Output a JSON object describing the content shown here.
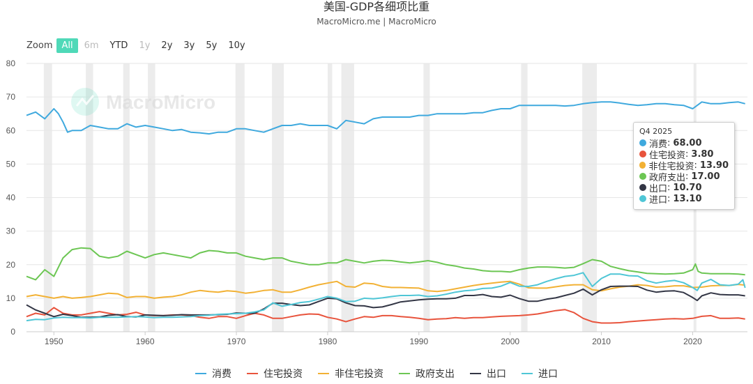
{
  "title": "美国-GDP各细项比重",
  "subtitle": "MacroMicro.me | MacroMicro",
  "watermark": "MacroMicro",
  "zoom": {
    "label": "Zoom",
    "buttons": [
      {
        "label": "All",
        "state": "active"
      },
      {
        "label": "6m",
        "state": "disabled"
      },
      {
        "label": "YTD",
        "state": "normal"
      },
      {
        "label": "1y",
        "state": "disabled"
      },
      {
        "label": "2y",
        "state": "normal"
      },
      {
        "label": "3y",
        "state": "normal"
      },
      {
        "label": "5y",
        "state": "normal"
      },
      {
        "label": "10y",
        "state": "normal"
      }
    ]
  },
  "tooltip": {
    "date": "Q4 2025",
    "rows": [
      {
        "name": "消费",
        "value": "68.00",
        "color": "#3fa9de"
      },
      {
        "name": "住宅投资",
        "value": "3.80",
        "color": "#e8533c"
      },
      {
        "name": "非住宅投资",
        "value": "13.90",
        "color": "#f2b134"
      },
      {
        "name": "政府支出",
        "value": "17.00",
        "color": "#6cc653"
      },
      {
        "name": "出口",
        "value": "10.70",
        "color": "#333645"
      },
      {
        "name": "进口",
        "value": "13.10",
        "color": "#4fc6d6"
      }
    ]
  },
  "chart_data": {
    "type": "line",
    "xlim": [
      1947,
      2026
    ],
    "ylim": [
      0,
      80
    ],
    "yticks": [
      0,
      10,
      20,
      30,
      40,
      50,
      60,
      70,
      80
    ],
    "xticks": [
      1950,
      1960,
      1970,
      1980,
      1990,
      2000,
      2010,
      2020
    ],
    "grid": true,
    "legend_position": "bottom",
    "recessions": [
      [
        1948.9,
        1949.8
      ],
      [
        1953.5,
        1954.3
      ],
      [
        1957.6,
        1958.3
      ],
      [
        1960.3,
        1961.1
      ],
      [
        1969.9,
        1970.9
      ],
      [
        1973.9,
        1975.2
      ],
      [
        1980.0,
        1980.5
      ],
      [
        1981.5,
        1982.9
      ],
      [
        1990.5,
        1991.2
      ],
      [
        2001.2,
        2001.9
      ],
      [
        2007.9,
        2009.5
      ],
      [
        2020.1,
        2020.4
      ]
    ],
    "series": [
      {
        "name": "消费",
        "color": "#3fa9de",
        "x": [
          1947,
          1948,
          1949,
          1950,
          1950.5,
          1951,
          1951.5,
          1952,
          1953,
          1954,
          1955,
          1956,
          1957,
          1958,
          1959,
          1960,
          1961,
          1962,
          1963,
          1964,
          1965,
          1966,
          1967,
          1968,
          1969,
          1970,
          1971,
          1972,
          1973,
          1974,
          1975,
          1976,
          1977,
          1978,
          1979,
          1980,
          1981,
          1982,
          1983,
          1984,
          1985,
          1986,
          1987,
          1988,
          1989,
          1990,
          1991,
          1992,
          1993,
          1994,
          1995,
          1996,
          1997,
          1998,
          1999,
          2000,
          2001,
          2002,
          2003,
          2004,
          2005,
          2006,
          2007,
          2008,
          2009,
          2010,
          2011,
          2012,
          2013,
          2014,
          2015,
          2016,
          2017,
          2018,
          2019,
          2020,
          2020.5,
          2021,
          2022,
          2023,
          2024,
          2025,
          2025.75
        ],
        "y": [
          64.5,
          65.5,
          63.5,
          66.5,
          65,
          62.5,
          59.5,
          60,
          60,
          61.5,
          61,
          60.5,
          60.5,
          62,
          61,
          61.5,
          61,
          60.5,
          60,
          60.3,
          59.5,
          59.3,
          59,
          59.5,
          59.5,
          60.5,
          60.5,
          60,
          59.5,
          60.5,
          61.5,
          61.5,
          62,
          61.5,
          61.5,
          61.5,
          60.5,
          63,
          62.5,
          62,
          63.5,
          64,
          64,
          64,
          64,
          64.5,
          64.5,
          65,
          65,
          65,
          65,
          65.3,
          65.3,
          66,
          66.5,
          66.5,
          67.5,
          67.5,
          67.5,
          67.5,
          67.5,
          67.3,
          67.5,
          68,
          68.3,
          68.5,
          68.5,
          68.2,
          67.8,
          67.5,
          67.7,
          68,
          68,
          67.7,
          67.5,
          66.5,
          67.5,
          68.5,
          68,
          68,
          68.3,
          68.5,
          68
        ]
      },
      {
        "name": "住宅投资",
        "color": "#e8533c",
        "x": [
          1947,
          1948,
          1949,
          1950,
          1951,
          1952,
          1953,
          1954,
          1955,
          1956,
          1957,
          1958,
          1959,
          1960,
          1961,
          1962,
          1963,
          1964,
          1965,
          1966,
          1967,
          1968,
          1969,
          1970,
          1971,
          1972,
          1973,
          1974,
          1975,
          1976,
          1977,
          1978,
          1979,
          1980,
          1981,
          1982,
          1983,
          1984,
          1985,
          1986,
          1987,
          1988,
          1989,
          1990,
          1991,
          1992,
          1993,
          1994,
          1995,
          1996,
          1997,
          1998,
          1999,
          2000,
          2001,
          2002,
          2003,
          2004,
          2005,
          2006,
          2007,
          2008,
          2009,
          2010,
          2011,
          2012,
          2013,
          2014,
          2015,
          2016,
          2017,
          2018,
          2019,
          2020,
          2021,
          2022,
          2023,
          2024,
          2025,
          2025.75
        ],
        "y": [
          4.5,
          5.5,
          5,
          7.2,
          5.5,
          5,
          5,
          5.5,
          6,
          5.5,
          5,
          5.2,
          5.8,
          5,
          4.8,
          4.8,
          5,
          5,
          4.8,
          4.3,
          4,
          4.5,
          4.5,
          4,
          4.8,
          5.5,
          5,
          4,
          4,
          4.5,
          5,
          5.3,
          5.2,
          4.3,
          3.8,
          3,
          3.8,
          4.5,
          4.3,
          4.8,
          4.8,
          4.5,
          4.3,
          4,
          3.6,
          3.8,
          3.9,
          4.2,
          4,
          4.2,
          4.2,
          4.4,
          4.6,
          4.7,
          4.8,
          5,
          5.3,
          5.8,
          6.3,
          6.6,
          5.7,
          4,
          3,
          2.6,
          2.6,
          2.7,
          3,
          3.2,
          3.4,
          3.6,
          3.8,
          3.9,
          3.8,
          4,
          4.6,
          4.8,
          4,
          4,
          4.1,
          3.8
        ]
      },
      {
        "name": "非住宅投资",
        "color": "#f2b134",
        "x": [
          1947,
          1948,
          1949,
          1950,
          1951,
          1952,
          1953,
          1954,
          1955,
          1956,
          1957,
          1958,
          1959,
          1960,
          1961,
          1962,
          1963,
          1964,
          1965,
          1966,
          1967,
          1968,
          1969,
          1970,
          1971,
          1972,
          1973,
          1974,
          1975,
          1976,
          1977,
          1978,
          1979,
          1980,
          1981,
          1982,
          1983,
          1984,
          1985,
          1986,
          1987,
          1988,
          1989,
          1990,
          1991,
          1992,
          1993,
          1994,
          1995,
          1996,
          1997,
          1998,
          1999,
          2000,
          2001,
          2002,
          2003,
          2004,
          2005,
          2006,
          2007,
          2008,
          2009,
          2010,
          2011,
          2012,
          2013,
          2014,
          2015,
          2016,
          2017,
          2018,
          2019,
          2020,
          2021,
          2022,
          2023,
          2024,
          2025,
          2025.75
        ],
        "y": [
          10.5,
          11,
          10.5,
          10,
          10.5,
          10,
          10.2,
          10.5,
          11,
          11.5,
          11.3,
          10.2,
          10.5,
          10.5,
          10,
          10.3,
          10.5,
          11,
          11.8,
          12.3,
          12,
          11.8,
          12.2,
          12,
          11.5,
          11.8,
          12.3,
          12.5,
          11.8,
          11.8,
          12.5,
          13.3,
          14,
          14.5,
          15,
          13.5,
          13.3,
          14.5,
          14.3,
          13.5,
          13.2,
          13.2,
          13.1,
          13,
          12.2,
          12,
          12.3,
          12.8,
          13.3,
          13.8,
          14.2,
          14.5,
          14.8,
          15,
          14.2,
          13.1,
          13,
          13,
          13.4,
          13.8,
          14,
          14,
          12.5,
          12.2,
          12.8,
          13.3,
          13.6,
          14,
          13.8,
          13.3,
          13.4,
          13.7,
          13.7,
          13.2,
          13.3,
          13.7,
          13.8,
          13.8,
          14.1,
          13.9
        ]
      },
      {
        "name": "政府支出",
        "color": "#6cc653",
        "x": [
          1947,
          1948,
          1949,
          1950,
          1951,
          1952,
          1953,
          1954,
          1955,
          1956,
          1957,
          1958,
          1959,
          1960,
          1961,
          1962,
          1963,
          1964,
          1965,
          1966,
          1967,
          1968,
          1969,
          1970,
          1971,
          1972,
          1973,
          1974,
          1975,
          1976,
          1977,
          1978,
          1979,
          1980,
          1981,
          1982,
          1983,
          1984,
          1985,
          1986,
          1987,
          1988,
          1989,
          1990,
          1991,
          1992,
          1993,
          1994,
          1995,
          1996,
          1997,
          1998,
          1999,
          2000,
          2001,
          2002,
          2003,
          2004,
          2005,
          2006,
          2007,
          2008,
          2009,
          2010,
          2011,
          2012,
          2013,
          2014,
          2015,
          2016,
          2017,
          2018,
          2019,
          2020,
          2020.3,
          2020.6,
          2021,
          2022,
          2023,
          2024,
          2025,
          2025.75
        ],
        "y": [
          16.5,
          15.5,
          18.5,
          16.5,
          22,
          24.5,
          25,
          24.8,
          22.5,
          22,
          22.5,
          24,
          23,
          22,
          23,
          23.5,
          23,
          22.5,
          22,
          23.5,
          24.2,
          24,
          23.5,
          23.5,
          22.5,
          22,
          21.5,
          22,
          22,
          21,
          20.5,
          20,
          20,
          20.5,
          20.5,
          21.5,
          21,
          20.5,
          21,
          21.3,
          21.2,
          20.8,
          20.5,
          20.8,
          21.2,
          20.7,
          20,
          19.6,
          19,
          18.7,
          18.2,
          18,
          18,
          17.8,
          18.5,
          19,
          19.3,
          19.3,
          19.2,
          19,
          19.2,
          20.3,
          21.5,
          21,
          19.5,
          18.8,
          18.2,
          17.8,
          17.4,
          17.3,
          17.2,
          17.3,
          17.5,
          18.5,
          20.2,
          18,
          17.5,
          17.3,
          17.3,
          17.3,
          17.2,
          17
        ]
      },
      {
        "name": "出口",
        "color": "#333645",
        "x": [
          1947,
          1948,
          1949,
          1950,
          1951,
          1952,
          1953,
          1954,
          1955,
          1956,
          1957,
          1958,
          1959,
          1960,
          1961,
          1962,
          1963,
          1964,
          1965,
          1966,
          1967,
          1968,
          1969,
          1970,
          1971,
          1972,
          1973,
          1974,
          1975,
          1976,
          1977,
          1978,
          1979,
          1980,
          1981,
          1982,
          1983,
          1984,
          1985,
          1986,
          1987,
          1988,
          1989,
          1990,
          1991,
          1992,
          1993,
          1994,
          1995,
          1996,
          1997,
          1998,
          1999,
          2000,
          2001,
          2002,
          2003,
          2004,
          2005,
          2006,
          2007,
          2008,
          2009,
          2010,
          2011,
          2012,
          2013,
          2014,
          2015,
          2016,
          2017,
          2018,
          2019,
          2020,
          2020.5,
          2021,
          2022,
          2023,
          2024,
          2025,
          2025.75
        ],
        "y": [
          8,
          6.5,
          5.5,
          4.5,
          5.2,
          4.8,
          4.3,
          4.3,
          4.4,
          4.9,
          5.1,
          4.5,
          4.4,
          5,
          4.9,
          4.8,
          4.9,
          5.1,
          5,
          5,
          5,
          5.1,
          5.2,
          5.6,
          5.5,
          5.5,
          6.8,
          8.5,
          8.5,
          8.1,
          7.8,
          8,
          9,
          10,
          9.8,
          8.6,
          7.8,
          7.7,
          7.2,
          7.4,
          8.1,
          8.9,
          9.2,
          9.5,
          9.7,
          9.8,
          9.8,
          10,
          10.8,
          10.8,
          11.1,
          10.5,
          10.3,
          10.9,
          9.9,
          9.1,
          9.1,
          9.7,
          10.1,
          10.8,
          11.5,
          12.7,
          11,
          12.5,
          13.5,
          13.6,
          13.6,
          13.5,
          12.4,
          11.8,
          12.1,
          12.2,
          11.7,
          10.2,
          9.3,
          10.7,
          11.6,
          11.1,
          11,
          11,
          10.7
        ]
      },
      {
        "name": "进口",
        "color": "#4fc6d6",
        "x": [
          1947,
          1948,
          1949,
          1950,
          1951,
          1952,
          1953,
          1954,
          1955,
          1956,
          1957,
          1958,
          1959,
          1960,
          1961,
          1962,
          1963,
          1964,
          1965,
          1966,
          1967,
          1968,
          1969,
          1970,
          1971,
          1972,
          1973,
          1974,
          1975,
          1976,
          1977,
          1978,
          1979,
          1980,
          1981,
          1982,
          1983,
          1984,
          1985,
          1986,
          1987,
          1988,
          1989,
          1990,
          1991,
          1992,
          1993,
          1994,
          1995,
          1996,
          1997,
          1998,
          1999,
          2000,
          2001,
          2002,
          2003,
          2004,
          2005,
          2006,
          2007,
          2008,
          2009,
          2010,
          2011,
          2012,
          2013,
          2014,
          2015,
          2016,
          2017,
          2018,
          2019,
          2020,
          2020.5,
          2021,
          2022,
          2023,
          2024,
          2025,
          2025.5,
          2025.75
        ],
        "y": [
          3.3,
          3.7,
          3.6,
          4.1,
          4.3,
          4.2,
          4.2,
          4.1,
          4.3,
          4.3,
          4.3,
          4.4,
          4.5,
          4.4,
          4.2,
          4.3,
          4.3,
          4.4,
          4.5,
          4.8,
          4.9,
          5.2,
          5.3,
          5.4,
          5.5,
          5.9,
          6.5,
          8.6,
          7.6,
          8.1,
          8.7,
          9,
          9.7,
          10.5,
          10,
          9,
          9.1,
          10,
          9.8,
          10.1,
          10.5,
          10.8,
          10.8,
          10.9,
          10.5,
          10.7,
          11.2,
          11.8,
          12.2,
          12.4,
          12.9,
          13,
          13.6,
          14.7,
          13.6,
          13.5,
          14,
          15,
          15.8,
          16.5,
          16.8,
          17.6,
          13.5,
          15.9,
          17.2,
          17.2,
          16.7,
          16.6,
          15.2,
          14.5,
          15,
          15.3,
          14.6,
          13.2,
          12.3,
          14.5,
          15.6,
          14,
          13.8,
          14.2,
          15.5,
          13.1
        ]
      }
    ]
  }
}
